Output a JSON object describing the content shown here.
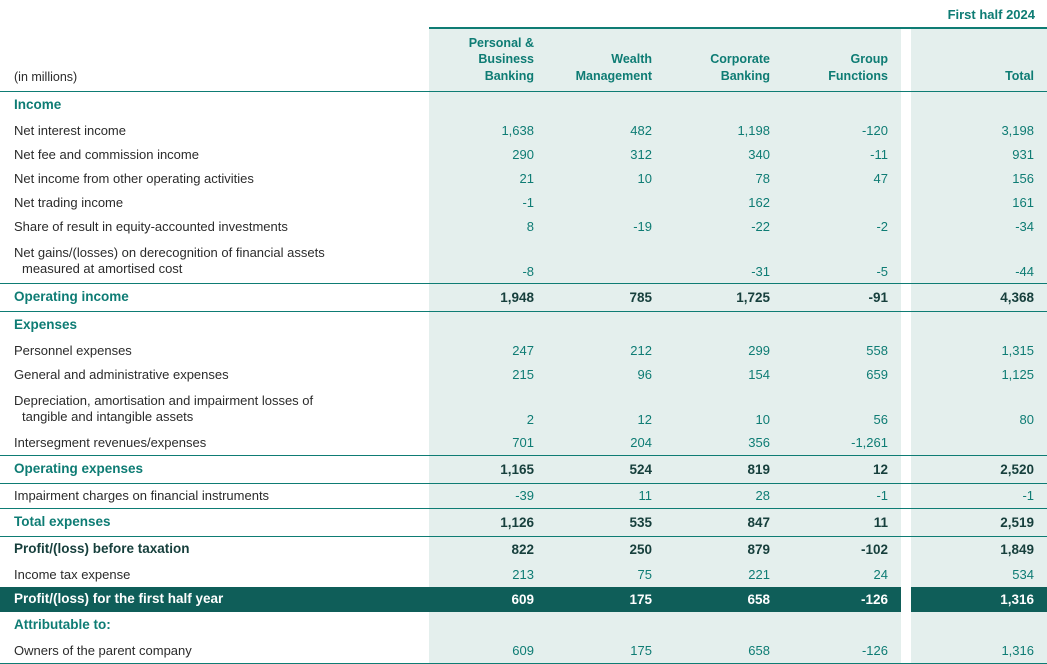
{
  "meta": {
    "period": "First half 2024",
    "unit_label": "(in millions)"
  },
  "columns": [
    {
      "label": "Personal &\nBusiness Banking"
    },
    {
      "label": "Wealth\nManagement"
    },
    {
      "label": "Corporate\nBanking"
    },
    {
      "label": "Group\nFunctions"
    },
    {
      "label": "Total"
    }
  ],
  "table": {
    "rows": [
      {
        "type": "section",
        "label": "Income",
        "values": [
          "",
          "",
          "",
          "",
          ""
        ]
      },
      {
        "type": "data",
        "label": "Net interest income",
        "values": [
          "1,638",
          "482",
          "1,198",
          "-120",
          "3,198"
        ]
      },
      {
        "type": "data",
        "label": "Net fee and commission income",
        "values": [
          "290",
          "312",
          "340",
          "-11",
          "931"
        ]
      },
      {
        "type": "data",
        "label": "Net income from other operating activities",
        "values": [
          "21",
          "10",
          "78",
          "47",
          "156"
        ]
      },
      {
        "type": "data",
        "label": "Net trading income",
        "values": [
          "-1",
          "",
          "162",
          "",
          "161"
        ]
      },
      {
        "type": "data",
        "label": "Share of result in equity-accounted investments",
        "values": [
          "8",
          "-19",
          "-22",
          "-2",
          "-34"
        ]
      },
      {
        "type": "data2",
        "label": "Net gains/(losses) on derecognition of financial assets",
        "label2": "measured at amortised cost",
        "values": [
          "-8",
          "",
          "-31",
          "-5",
          "-44"
        ]
      },
      {
        "type": "subtotal",
        "label": "Operating income",
        "values": [
          "1,948",
          "785",
          "1,725",
          "-91",
          "4,368"
        ]
      },
      {
        "type": "section",
        "label": "Expenses",
        "values": [
          "",
          "",
          "",
          "",
          ""
        ]
      },
      {
        "type": "data",
        "label": "Personnel expenses",
        "values": [
          "247",
          "212",
          "299",
          "558",
          "1,315"
        ]
      },
      {
        "type": "data",
        "label": "General and administrative expenses",
        "values": [
          "215",
          "96",
          "154",
          "659",
          "1,125"
        ]
      },
      {
        "type": "data2",
        "label": "Depreciation, amortisation and impairment losses of",
        "label2": "tangible and intangible assets",
        "values": [
          "2",
          "12",
          "10",
          "56",
          "80"
        ]
      },
      {
        "type": "data",
        "label": "Intersegment revenues/expenses",
        "values": [
          "701",
          "204",
          "356",
          "-1,261",
          ""
        ]
      },
      {
        "type": "subtotal",
        "label": "Operating expenses",
        "values": [
          "1,165",
          "524",
          "819",
          "12",
          "2,520"
        ]
      },
      {
        "type": "data",
        "label": "Impairment charges on financial instruments",
        "values": [
          "-39",
          "11",
          "28",
          "-1",
          "-1"
        ]
      },
      {
        "type": "subtotal",
        "label": "Total expenses",
        "values": [
          "1,126",
          "535",
          "847",
          "11",
          "2,519"
        ]
      },
      {
        "type": "pbt",
        "label": "Profit/(loss) before taxation",
        "values": [
          "822",
          "250",
          "879",
          "-102",
          "1,849"
        ]
      },
      {
        "type": "data",
        "label": "Income tax expense",
        "values": [
          "213",
          "75",
          "221",
          "24",
          "534"
        ]
      },
      {
        "type": "dark",
        "label": "Profit/(loss) for the first half year",
        "values": [
          "609",
          "175",
          "658",
          "-126",
          "1,316"
        ]
      },
      {
        "type": "section",
        "label": "Attributable to:",
        "values": [
          "",
          "",
          "",
          "",
          ""
        ]
      },
      {
        "type": "data",
        "label": "Owners of the parent company",
        "values": [
          "609",
          "175",
          "658",
          "-126",
          "1,316"
        ]
      }
    ]
  },
  "colors": {
    "accent": "#0e7c74",
    "light_bg": "#e4efed",
    "dark_bar": "#0f5e59",
    "dark_text": "#163f3c"
  }
}
